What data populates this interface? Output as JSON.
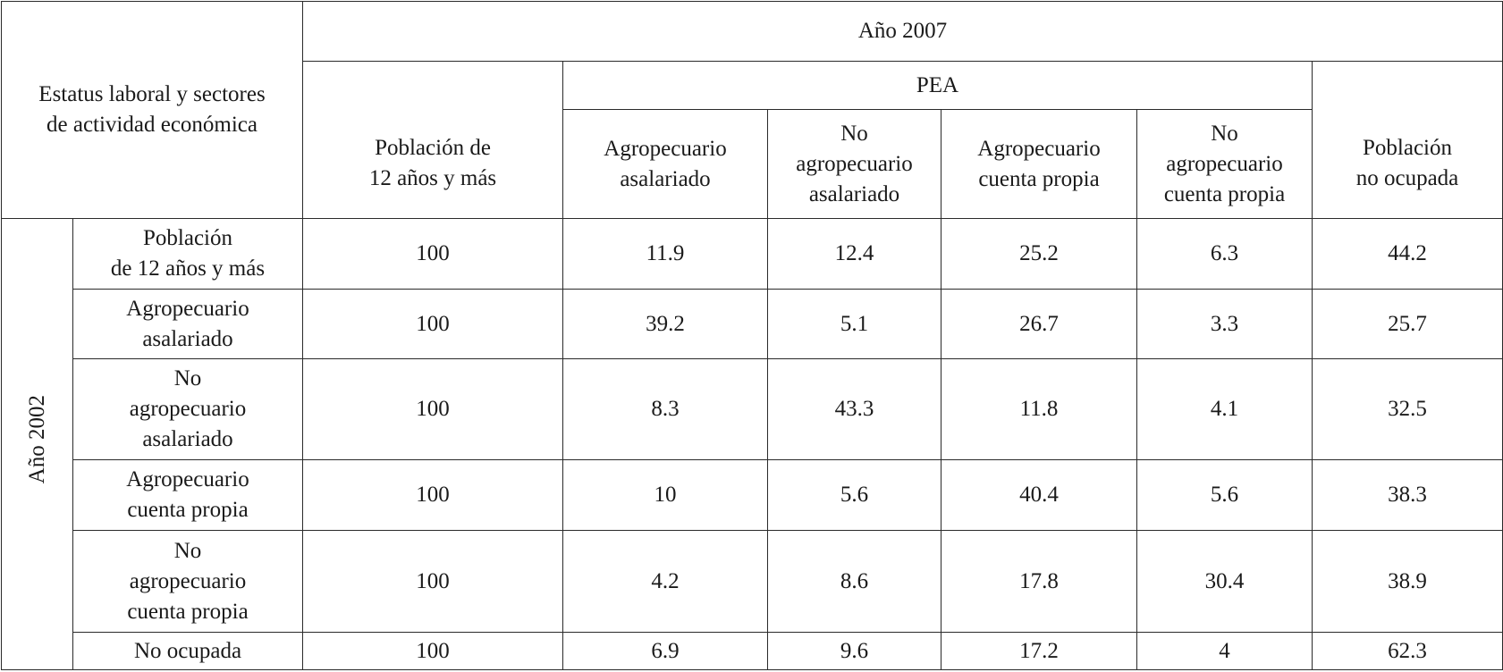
{
  "header": {
    "corner_label": "Estatus laboral y sectores\nde actividad económica",
    "top_year": "Año 2007",
    "pea_label": "PEA",
    "row_year": "Año 2002",
    "columns": [
      "Población de\n12 años y más",
      "Agropecuario\nasalariado",
      "No\nagropecuario\nasalariado",
      "Agropecuario\ncuenta propia",
      "No\nagropecuario\ncuenta propia",
      "Población\nno ocupada"
    ]
  },
  "rows": [
    {
      "label": "Población\nde 12 años y más",
      "values": [
        "100",
        "11.9",
        "12.4",
        "25.2",
        "6.3",
        "44.2"
      ]
    },
    {
      "label": "Agropecuario\nasalariado",
      "values": [
        "100",
        "39.2",
        "5.1",
        "26.7",
        "3.3",
        "25.7"
      ]
    },
    {
      "label": "No\nagropecuario\nasalariado",
      "values": [
        "100",
        "8.3",
        "43.3",
        "11.8",
        "4.1",
        "32.5"
      ]
    },
    {
      "label": "Agropecuario\ncuenta propia",
      "values": [
        "100",
        "10",
        "5.6",
        "40.4",
        "5.6",
        "38.3"
      ]
    },
    {
      "label": "No\nagropecuario\ncuenta propia",
      "values": [
        "100",
        "4.2",
        "8.6",
        "17.8",
        "30.4",
        "38.9"
      ]
    },
    {
      "label": "No ocupada",
      "values": [
        "100",
        "6.9",
        "9.6",
        "17.2",
        "4",
        "62.3"
      ]
    }
  ]
}
